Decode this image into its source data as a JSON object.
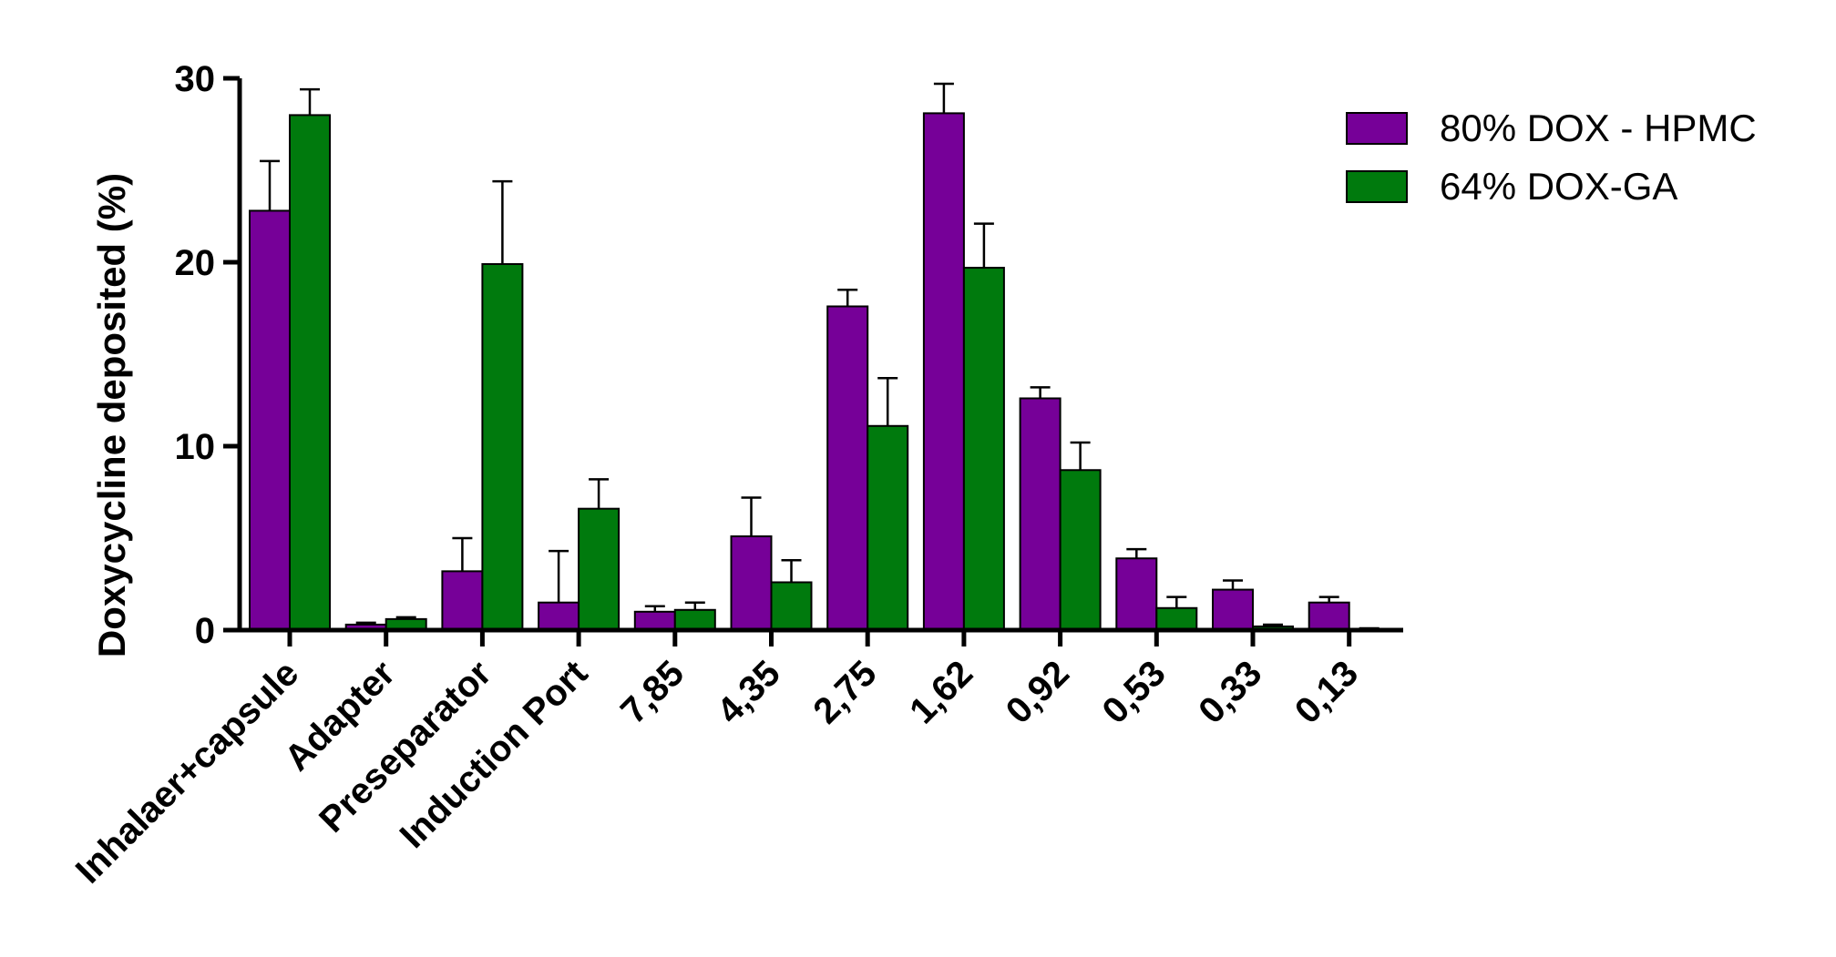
{
  "chart_data": {
    "type": "bar",
    "title": "",
    "xlabel": "",
    "ylabel": "Doxycycline deposited (%)",
    "ylim": [
      0,
      30
    ],
    "yticks": [
      0,
      10,
      20,
      30
    ],
    "grid": false,
    "legend_position": "top-right",
    "categories": [
      "Inhalaer+capsule",
      "Adapter",
      "Preseparator",
      "Induction Port",
      "7,85",
      "4,35",
      "2,75",
      "1,62",
      "0,92",
      "0,53",
      "0,33",
      "0,13"
    ],
    "series": [
      {
        "name": "80% DOX - HPMC",
        "color": "#760098",
        "values": [
          22.8,
          0.3,
          3.2,
          1.5,
          1.0,
          5.1,
          17.6,
          28.1,
          12.6,
          3.9,
          2.2,
          1.5
        ],
        "errors": [
          2.7,
          0.1,
          1.8,
          2.8,
          0.3,
          2.1,
          0.9,
          1.6,
          0.6,
          0.5,
          0.5,
          0.3
        ]
      },
      {
        "name": "64% DOX-GA",
        "color": "#007a0d",
        "values": [
          28.0,
          0.6,
          19.9,
          6.6,
          1.1,
          2.6,
          11.1,
          19.7,
          8.7,
          1.2,
          0.2,
          0.05
        ],
        "errors": [
          1.4,
          0.1,
          4.5,
          1.6,
          0.4,
          1.2,
          2.6,
          2.4,
          1.5,
          0.6,
          0.1,
          0.05
        ]
      }
    ]
  }
}
